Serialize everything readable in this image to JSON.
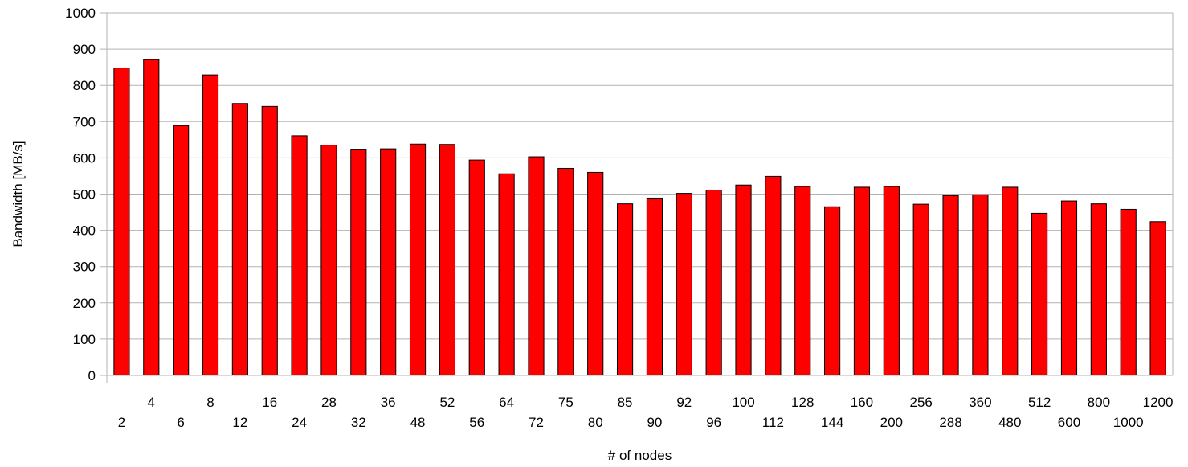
{
  "chart_data": {
    "type": "bar",
    "title": "",
    "xlabel": "# of nodes",
    "ylabel": "Bandwidth [MB/s]",
    "ylim": [
      0,
      1000
    ],
    "yticks": [
      0,
      100,
      200,
      300,
      400,
      500,
      600,
      700,
      800,
      900,
      1000
    ],
    "grid": true,
    "legend": "none",
    "categories": [
      "2",
      "4",
      "6",
      "8",
      "12",
      "16",
      "24",
      "28",
      "32",
      "36",
      "48",
      "52",
      "56",
      "64",
      "72",
      "75",
      "80",
      "85",
      "90",
      "92",
      "96",
      "100",
      "112",
      "128",
      "144",
      "160",
      "200",
      "256",
      "288",
      "360",
      "480",
      "512",
      "600",
      "800",
      "1000",
      "1200"
    ],
    "values": [
      848,
      871,
      689,
      829,
      750,
      742,
      661,
      635,
      624,
      625,
      638,
      637,
      594,
      556,
      603,
      571,
      560,
      473,
      489,
      502,
      511,
      525,
      549,
      521,
      465,
      519,
      521,
      472,
      496,
      498,
      519,
      447,
      481,
      473,
      458,
      424
    ],
    "colors": {
      "bar_fill": "#ff0000",
      "bar_stroke": "#000000",
      "grid": "#b3b3b3",
      "axis": "#b3b3b3"
    }
  }
}
